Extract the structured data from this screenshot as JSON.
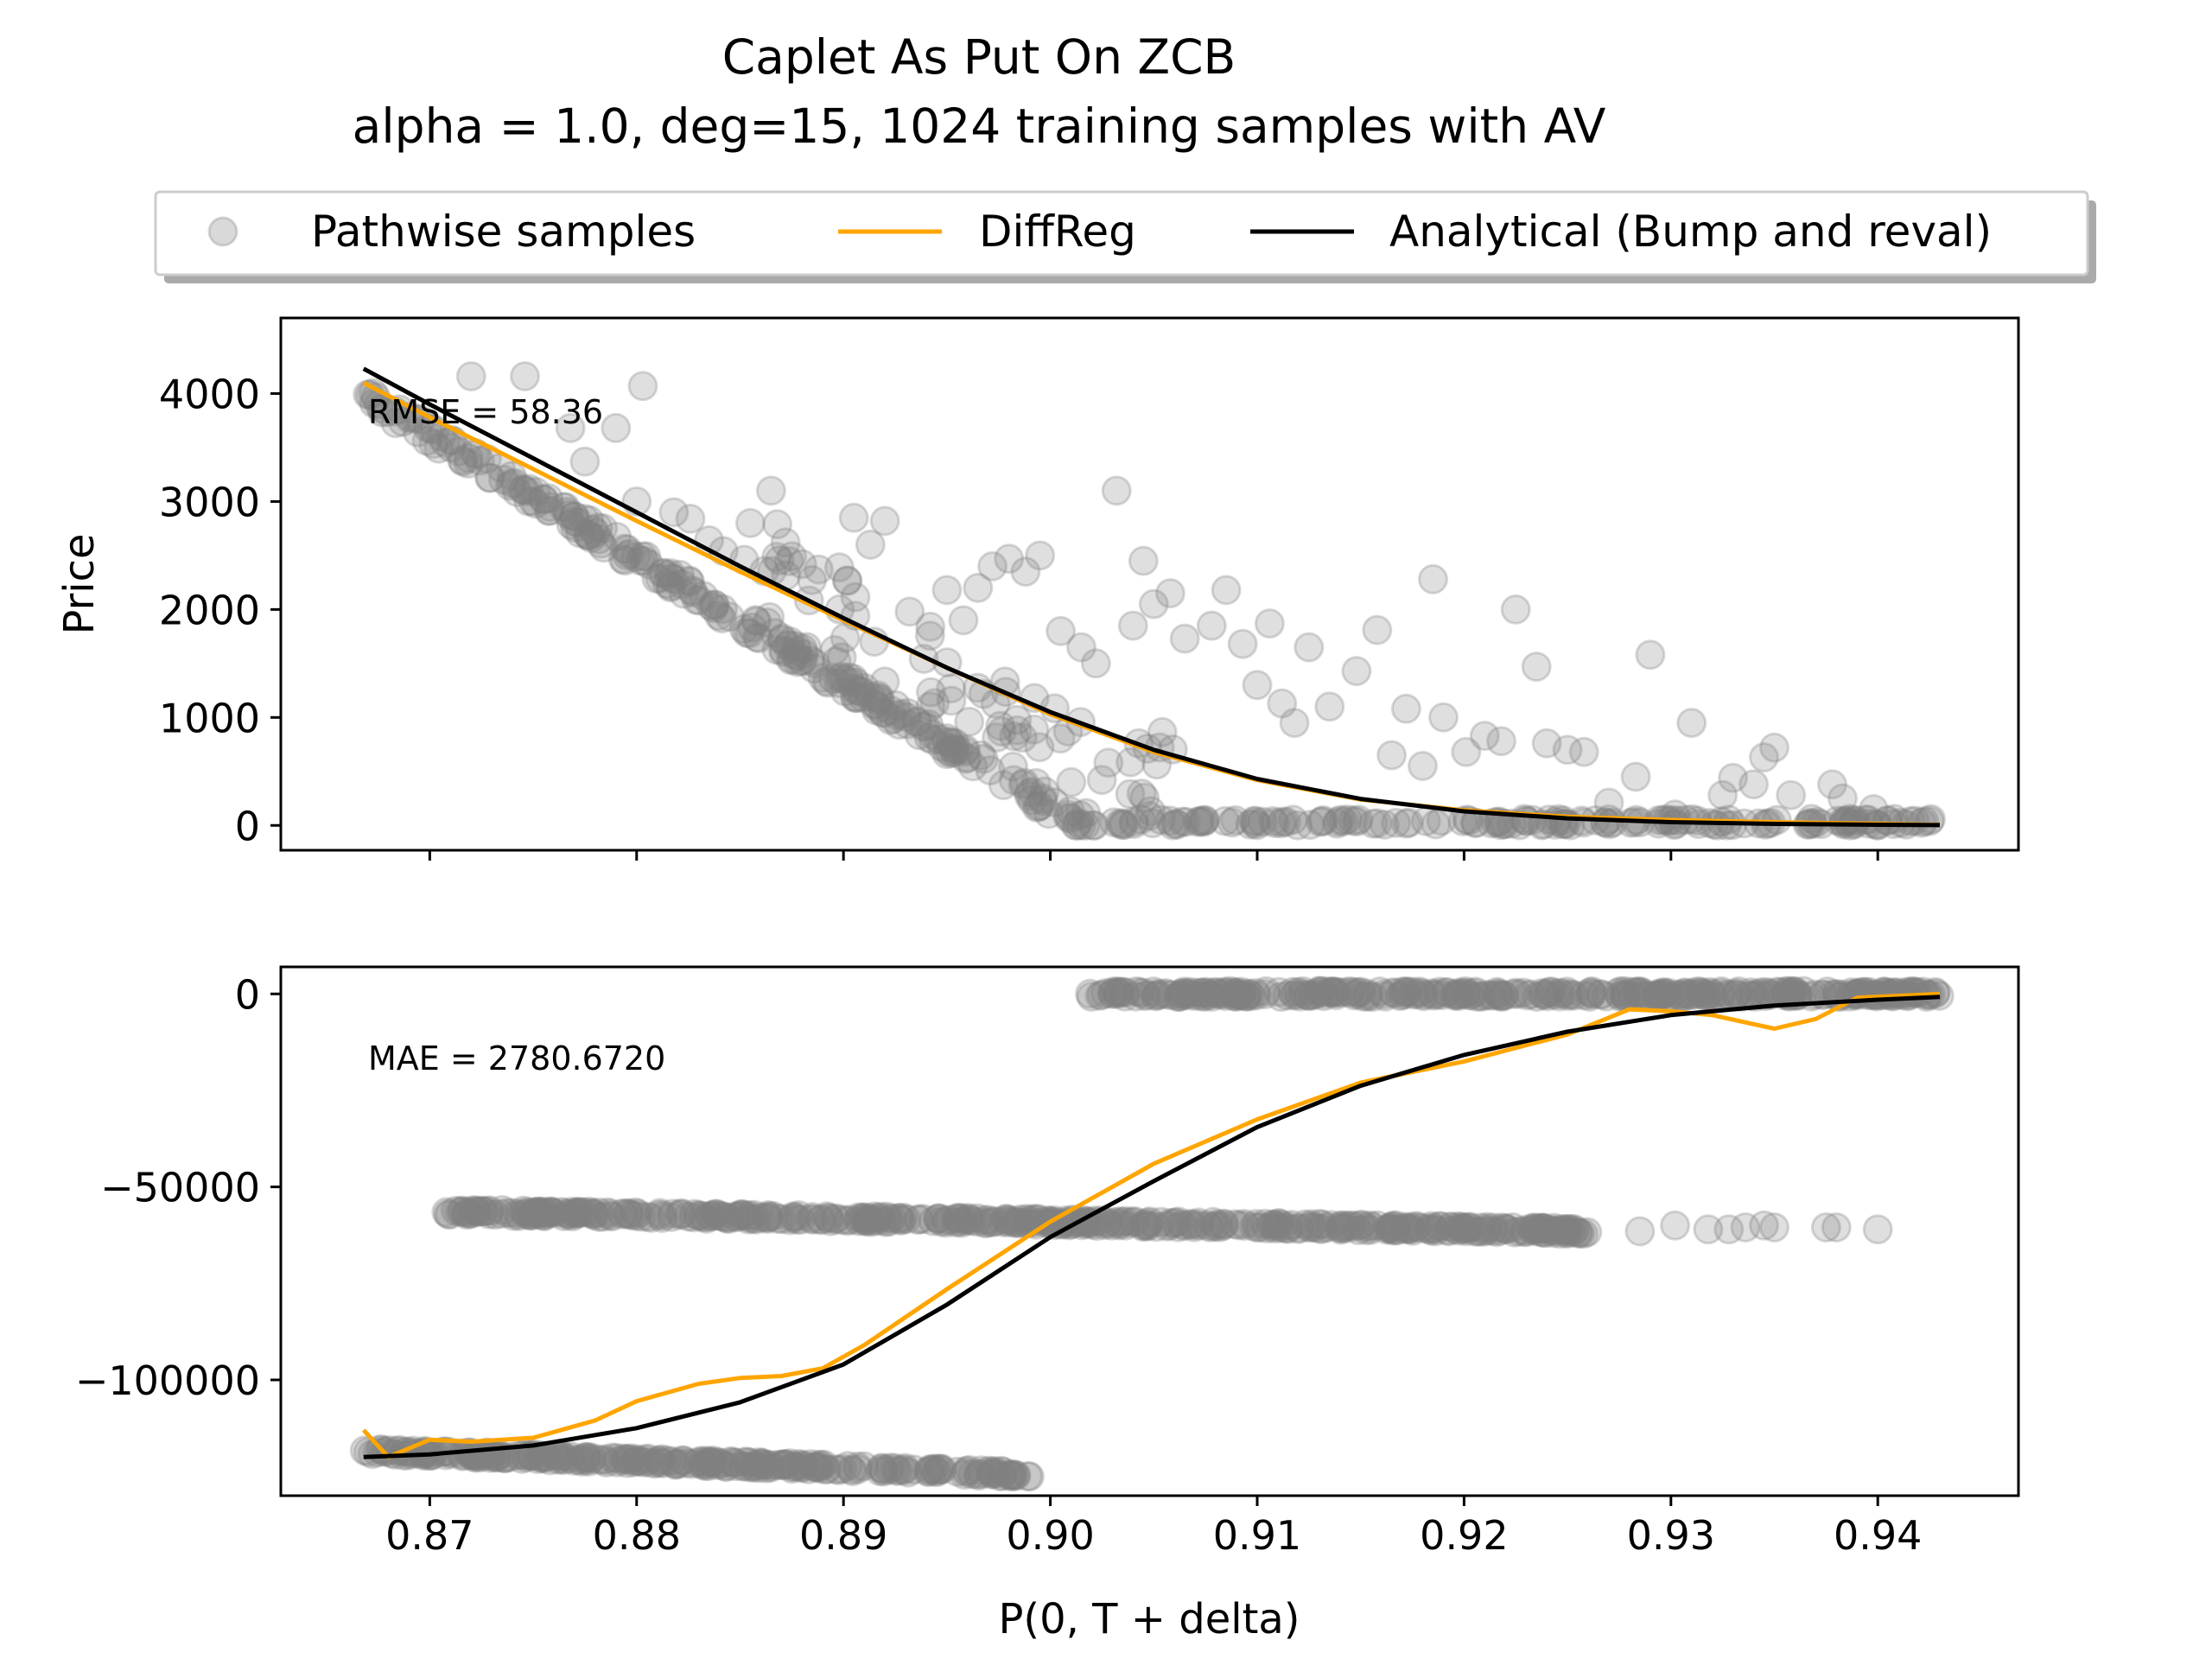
{
  "figure": {
    "title_line1": "Caplet As Put On ZCB",
    "title_line2": "alpha = 1.0, deg=15, 1024 training samples with AV",
    "xlabel": "P(0, T + delta)"
  },
  "legend": {
    "location": "top-center",
    "items": [
      {
        "label": "Pathwise samples",
        "kind": "marker",
        "color": "#808080"
      },
      {
        "label": "DiffReg",
        "kind": "line",
        "color": "#FFA500"
      },
      {
        "label": "Analytical (Bump and reval)",
        "kind": "line",
        "color": "#000000"
      }
    ]
  },
  "colors": {
    "samples": "#808080",
    "diffreg": "#FFA500",
    "analytical": "#000000"
  },
  "chart_data": [
    {
      "type": "scatter",
      "panel": "top",
      "ylabel": "Price",
      "annotation": "RMSE = 58.36",
      "xlim": [
        0.8628,
        0.9468
      ],
      "ylim": [
        -230,
        4700
      ],
      "xticks": [
        0.87,
        0.88,
        0.89,
        0.9,
        0.91,
        0.92,
        0.93,
        0.94
      ],
      "yticks": [
        0,
        1000,
        2000,
        3000,
        4000
      ],
      "ytick_labels": [
        "0",
        "1000",
        "2000",
        "3000",
        "4000"
      ],
      "grid": false,
      "series": [
        {
          "name": "Pathwise samples",
          "kind": "scatter",
          "band_description": "dense band along price = (0.9023 - x) * 115000 for x < 0.9023, zero beyond, plus sparse scatter above",
          "points": [
            [
              0.872,
              4160
            ],
            [
              0.8746,
              4160
            ],
            [
              0.8768,
              3680
            ],
            [
              0.8775,
              3370
            ],
            [
              0.879,
              3680
            ],
            [
              0.8803,
              4070
            ],
            [
              0.88,
              3000
            ],
            [
              0.8818,
              2900
            ],
            [
              0.8826,
              2840
            ],
            [
              0.8835,
              2640
            ],
            [
              0.8842,
              2540
            ],
            [
              0.8852,
              2460
            ],
            [
              0.8855,
              2800
            ],
            [
              0.8865,
              3100
            ],
            [
              0.8868,
              2790
            ],
            [
              0.8872,
              2620
            ],
            [
              0.888,
              2420
            ],
            [
              0.8888,
              2370
            ],
            [
              0.8898,
              2390
            ],
            [
              0.8905,
              2850
            ],
            [
              0.8913,
              2600
            ],
            [
              0.892,
              2820
            ],
            [
              0.8932,
              1980
            ],
            [
              0.8942,
              1840
            ],
            [
              0.895,
              2180
            ],
            [
              0.8958,
              1900
            ],
            [
              0.8965,
              2200
            ],
            [
              0.8972,
              2400
            ],
            [
              0.898,
              2470
            ],
            [
              0.8988,
              2350
            ],
            [
              0.8995,
              2500
            ],
            [
              0.9005,
              1800
            ],
            [
              0.9015,
              1650
            ],
            [
              0.9022,
              1500
            ],
            [
              0.9032,
              3100
            ],
            [
              0.904,
              1850
            ],
            [
              0.9045,
              2450
            ],
            [
              0.905,
              2050
            ],
            [
              0.9058,
              2150
            ],
            [
              0.9065,
              1730
            ],
            [
              0.9078,
              1850
            ],
            [
              0.9085,
              2180
            ],
            [
              0.9093,
              1680
            ],
            [
              0.91,
              1300
            ],
            [
              0.9106,
              1870
            ],
            [
              0.9112,
              1130
            ],
            [
              0.9118,
              950
            ],
            [
              0.9125,
              1650
            ],
            [
              0.9135,
              1100
            ],
            [
              0.9148,
              1430
            ],
            [
              0.9158,
              1810
            ],
            [
              0.9165,
              650
            ],
            [
              0.9172,
              1080
            ],
            [
              0.918,
              550
            ],
            [
              0.9185,
              2280
            ],
            [
              0.919,
              1000
            ],
            [
              0.9201,
              680
            ],
            [
              0.921,
              830
            ],
            [
              0.9218,
              780
            ],
            [
              0.9225,
              2000
            ],
            [
              0.9235,
              1470
            ],
            [
              0.924,
              760
            ],
            [
              0.925,
              700
            ],
            [
              0.9258,
              680
            ],
            [
              0.927,
              210
            ],
            [
              0.9283,
              450
            ],
            [
              0.929,
              1580
            ],
            [
              0.9302,
              100
            ],
            [
              0.931,
              950
            ],
            [
              0.9325,
              280
            ],
            [
              0.933,
              440
            ],
            [
              0.934,
              380
            ],
            [
              0.9345,
              630
            ],
            [
              0.935,
              720
            ],
            [
              0.9358,
              280
            ],
            [
              0.9368,
              60
            ],
            [
              0.9378,
              380
            ],
            [
              0.9383,
              250
            ],
            [
              0.9398,
              150
            ],
            [
              0.9408,
              60
            ],
            [
              0.9425,
              40
            ]
          ]
        },
        {
          "name": "DiffReg",
          "kind": "line",
          "points": [
            [
              0.8668,
              4100
            ],
            [
              0.87,
              3780
            ],
            [
              0.875,
              3300
            ],
            [
              0.88,
              2820
            ],
            [
              0.885,
              2350
            ],
            [
              0.89,
              1900
            ],
            [
              0.895,
              1460
            ],
            [
              0.9,
              1030
            ],
            [
              0.905,
              680
            ],
            [
              0.91,
              420
            ],
            [
              0.915,
              240
            ],
            [
              0.92,
              140
            ],
            [
              0.925,
              80
            ],
            [
              0.93,
              50
            ],
            [
              0.935,
              30
            ],
            [
              0.94,
              15
            ],
            [
              0.943,
              5
            ]
          ]
        },
        {
          "name": "Analytical (Bump and reval)",
          "kind": "line",
          "points": [
            [
              0.8668,
              4230
            ],
            [
              0.87,
              3900
            ],
            [
              0.875,
              3400
            ],
            [
              0.88,
              2900
            ],
            [
              0.885,
              2400
            ],
            [
              0.89,
              1920
            ],
            [
              0.895,
              1460
            ],
            [
              0.9,
              1050
            ],
            [
              0.905,
              700
            ],
            [
              0.91,
              430
            ],
            [
              0.915,
              245
            ],
            [
              0.92,
              130
            ],
            [
              0.925,
              65
            ],
            [
              0.93,
              30
            ],
            [
              0.935,
              14
            ],
            [
              0.94,
              6
            ],
            [
              0.943,
              3
            ]
          ]
        }
      ]
    },
    {
      "type": "scatter",
      "panel": "bottom",
      "ylabel": "",
      "annotation": "MAE = 2780.6720",
      "xlim": [
        0.8628,
        0.9468
      ],
      "ylim": [
        -130000,
        7000
      ],
      "xticks": [
        0.87,
        0.88,
        0.89,
        0.9,
        0.91,
        0.92,
        0.93,
        0.94
      ],
      "xtick_labels": [
        "0.87",
        "0.88",
        "0.89",
        "0.90",
        "0.91",
        "0.92",
        "0.93",
        "0.94"
      ],
      "yticks": [
        0,
        -50000,
        -100000
      ],
      "ytick_labels": [
        "0",
        "−50000",
        "−100000"
      ],
      "grid": false,
      "series": [
        {
          "name": "Pathwise samples",
          "kind": "scatter",
          "band_description": "three horizontal bands: y=0 for x in [0.9018,0.9430]; y from -56500 to -61500 for x in [0.8708,0.9262] plus sparse tail to 0.940; y from -118500 to -124500 for x in [0.8668,0.8990]",
          "bands": [
            {
              "x_start": 0.9018,
              "x_end": 0.943,
              "y_start": 0,
              "y_end": 0
            },
            {
              "x_start": 0.8708,
              "x_end": 0.9262,
              "y_start": -56500,
              "y_end": -61500
            },
            {
              "x_start": 0.8668,
              "x_end": 0.899,
              "y_start": -118500,
              "y_end": -124500
            }
          ],
          "points": [
            [
              0.9285,
              -61500
            ],
            [
              0.9302,
              -60000
            ],
            [
              0.9318,
              -61000
            ],
            [
              0.9328,
              -61000
            ],
            [
              0.9336,
              -60500
            ],
            [
              0.9345,
              -60000
            ],
            [
              0.935,
              -60500
            ],
            [
              0.9375,
              -60500
            ],
            [
              0.938,
              -60500
            ],
            [
              0.94,
              -61000
            ]
          ]
        },
        {
          "name": "DiffReg",
          "kind": "line",
          "points": [
            [
              0.8668,
              -113000
            ],
            [
              0.868,
              -120000
            ],
            [
              0.87,
              -115500
            ],
            [
              0.872,
              -116000
            ],
            [
              0.875,
              -115000
            ],
            [
              0.878,
              -110500
            ],
            [
              0.88,
              -105500
            ],
            [
              0.883,
              -101000
            ],
            [
              0.885,
              -99500
            ],
            [
              0.887,
              -99000
            ],
            [
              0.889,
              -97000
            ],
            [
              0.891,
              -91000
            ],
            [
              0.895,
              -76500
            ],
            [
              0.9,
              -59000
            ],
            [
              0.905,
              -44000
            ],
            [
              0.91,
              -32500
            ],
            [
              0.915,
              -23000
            ],
            [
              0.92,
              -17500
            ],
            [
              0.925,
              -10500
            ],
            [
              0.928,
              -4000
            ],
            [
              0.93,
              -4500
            ],
            [
              0.932,
              -5500
            ],
            [
              0.935,
              -9000
            ],
            [
              0.937,
              -6500
            ],
            [
              0.939,
              -1000
            ],
            [
              0.943,
              0
            ]
          ]
        },
        {
          "name": "Analytical (Bump and reval)",
          "kind": "line",
          "points": [
            [
              0.8668,
              -120000
            ],
            [
              0.87,
              -119300
            ],
            [
              0.875,
              -117000
            ],
            [
              0.88,
              -112500
            ],
            [
              0.885,
              -105800
            ],
            [
              0.89,
              -96000
            ],
            [
              0.895,
              -80500
            ],
            [
              0.9,
              -63000
            ],
            [
              0.905,
              -48500
            ],
            [
              0.91,
              -34500
            ],
            [
              0.915,
              -23800
            ],
            [
              0.92,
              -15800
            ],
            [
              0.925,
              -9800
            ],
            [
              0.93,
              -5500
            ],
            [
              0.935,
              -3000
            ],
            [
              0.94,
              -1500
            ],
            [
              0.943,
              -800
            ]
          ]
        }
      ]
    }
  ]
}
